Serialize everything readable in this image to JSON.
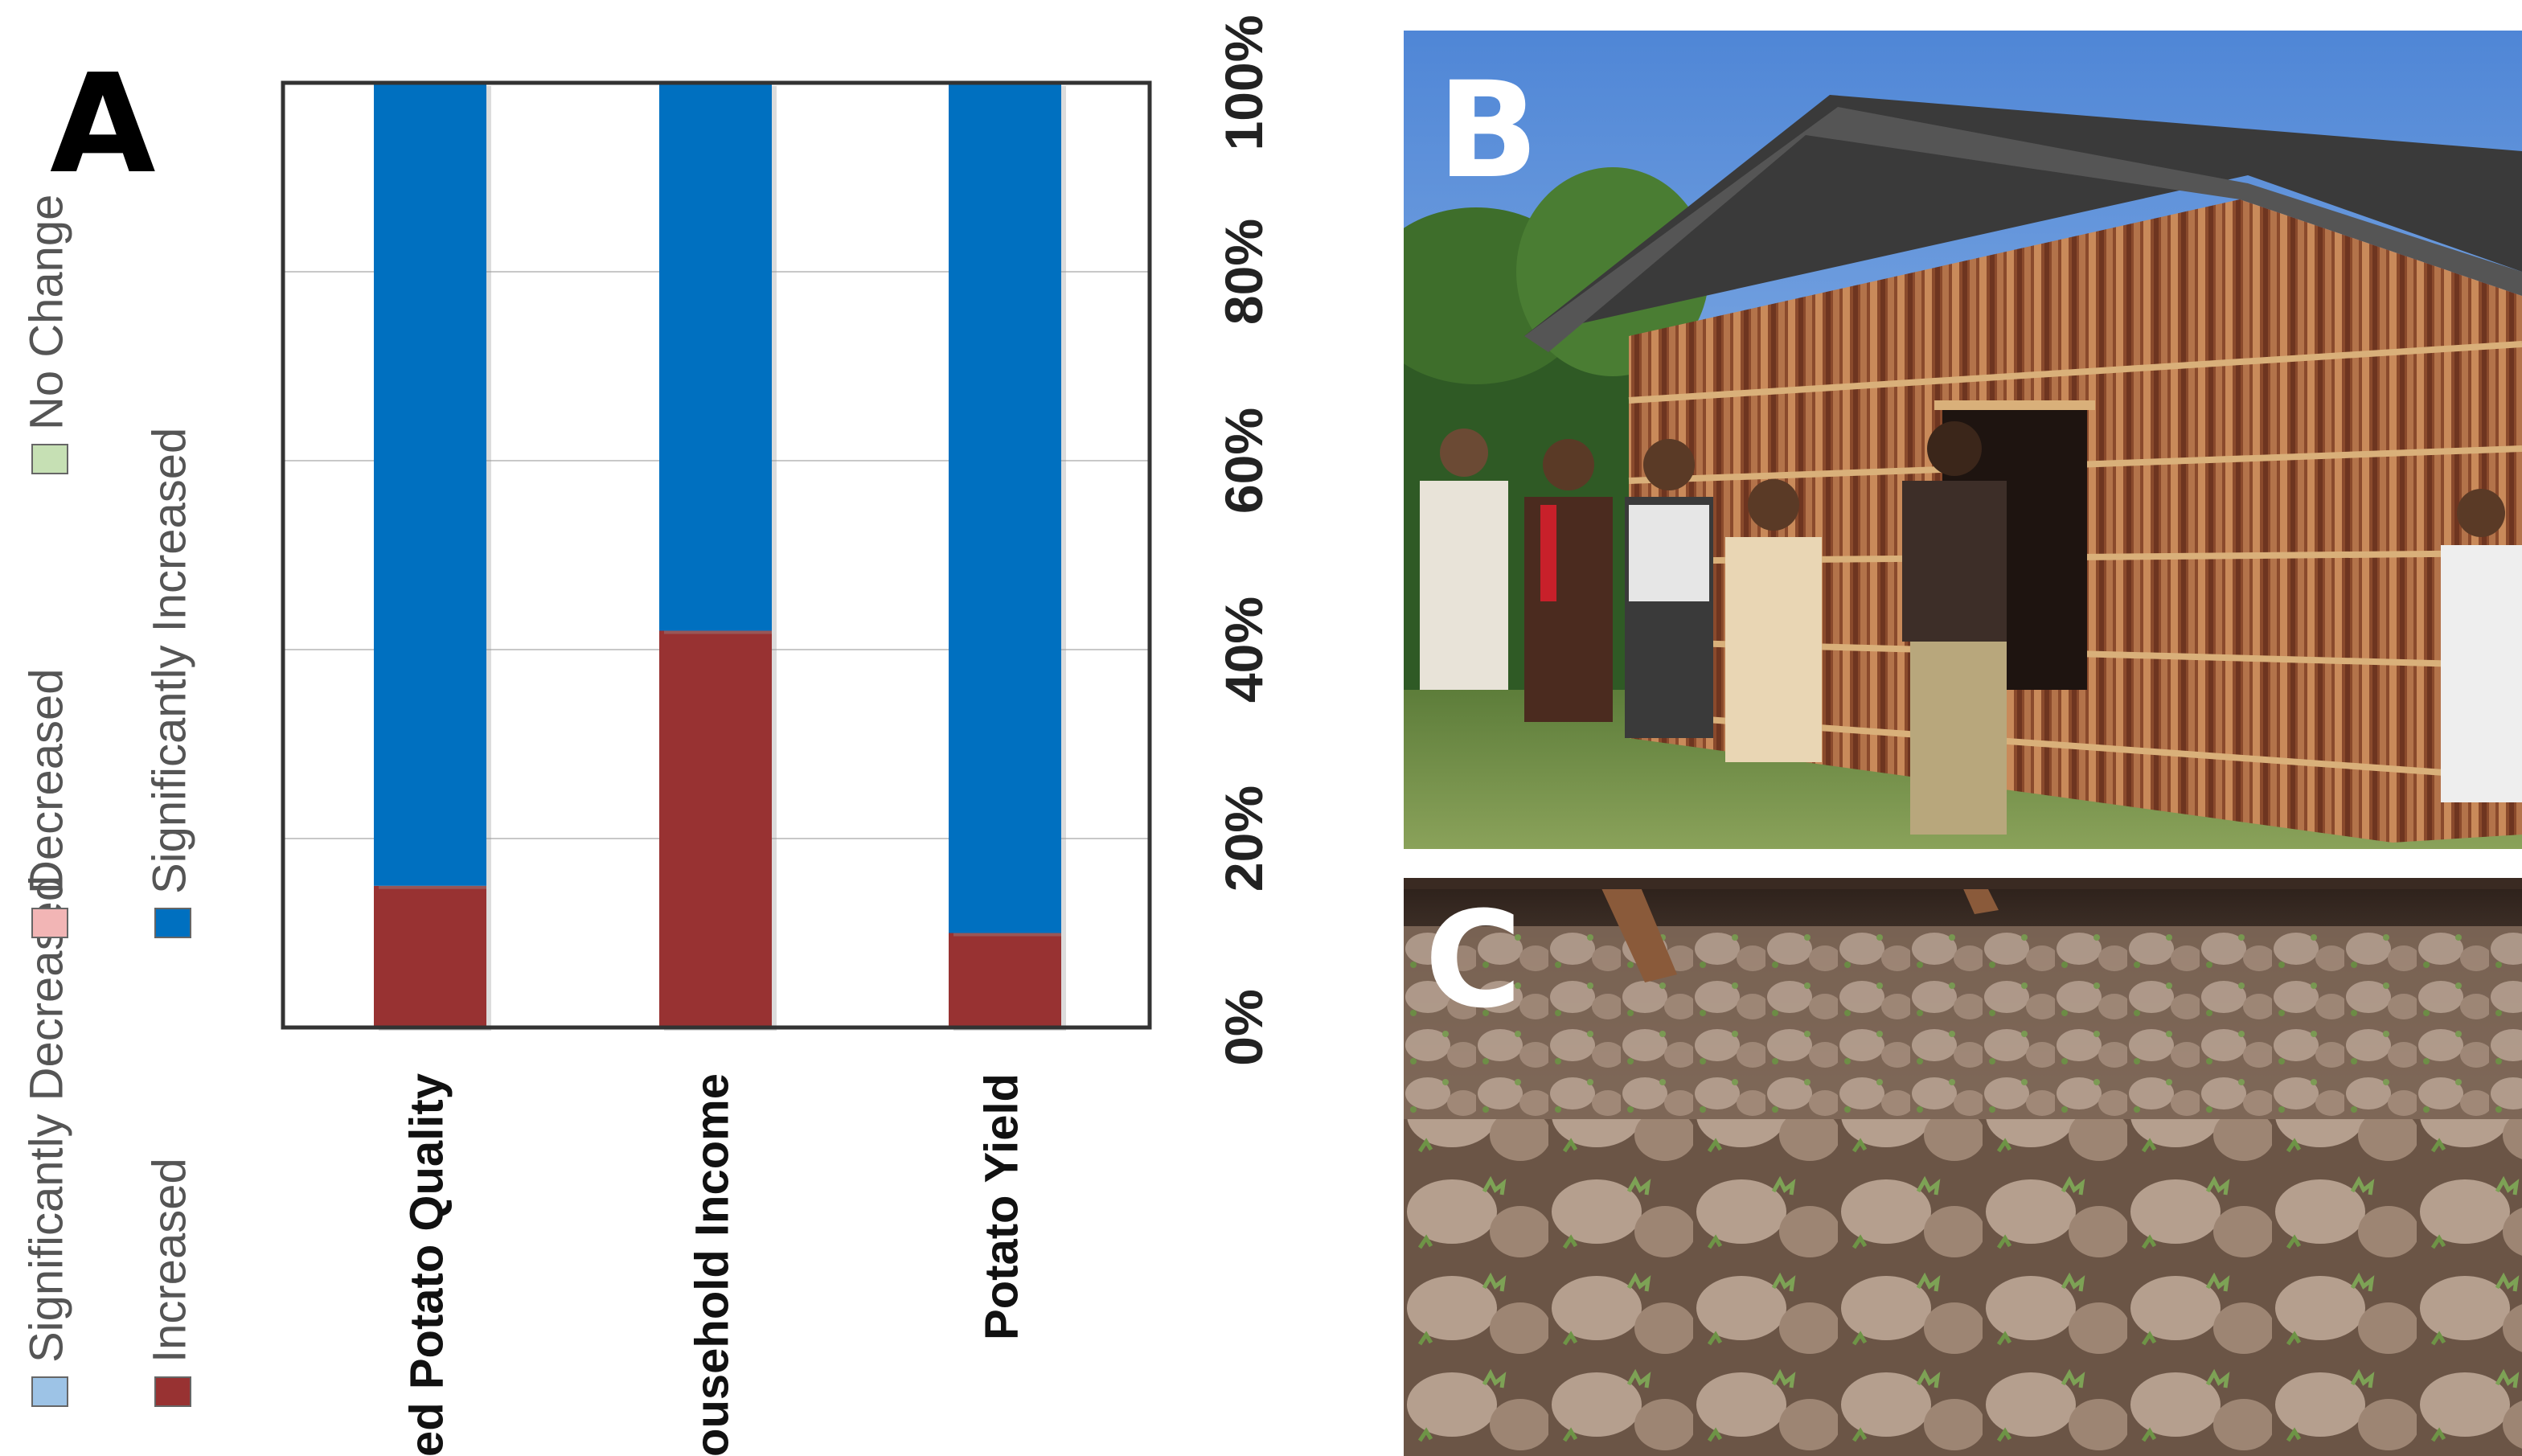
{
  "panels": {
    "a_label": "A",
    "b_label": "B",
    "c_label": "C"
  },
  "chart_data": {
    "type": "bar",
    "stacked": true,
    "orientation": "rotated-90-clockwise",
    "categories": [
      "Seed Potato Quality",
      "Household Income",
      "Potato Yield"
    ],
    "series": [
      {
        "name": "Significantly Decreased",
        "color": "#9dc3e6",
        "values": [
          0,
          0,
          0
        ]
      },
      {
        "name": "Decreased",
        "color": "#f2b5b5",
        "values": [
          0,
          0,
          0
        ]
      },
      {
        "name": "No Change",
        "color": "#c6e0b4",
        "values": [
          0,
          0,
          0
        ]
      },
      {
        "name": "Increased",
        "color": "#983232",
        "values": [
          15,
          42,
          10
        ]
      },
      {
        "name": "Significantly Increased",
        "color": "#0070c0",
        "values": [
          85,
          58,
          90
        ]
      }
    ],
    "ticks": [
      "0%",
      "20%",
      "40%",
      "60%",
      "80%",
      "100%"
    ],
    "ylim": [
      0,
      100
    ],
    "grid": true,
    "legend": "left"
  },
  "colors": {
    "grid": "#c8c8c8",
    "frame": "#333333"
  },
  "photos": {
    "b_icon": "hut-photo",
    "c_icon": "potato-tubers-photo"
  }
}
